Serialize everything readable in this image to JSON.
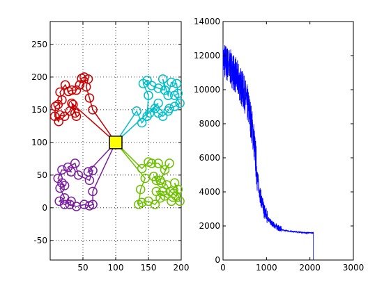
{
  "chart_data": [
    {
      "type": "scatter",
      "title": "",
      "xlabel": "",
      "ylabel": "",
      "xlim": [
        0,
        200
      ],
      "ylim": [
        -80,
        285
      ],
      "xticks": [
        50,
        100,
        150,
        200
      ],
      "yticks": [
        -50,
        0,
        50,
        100,
        150,
        200,
        250
      ],
      "grid": true,
      "depot": {
        "x": 100,
        "y": 100,
        "color": "#ffff00"
      },
      "series": [
        {
          "color": "#cc0000",
          "points": [
            [
              65,
              150
            ],
            [
              60,
              168
            ],
            [
              55,
              185
            ],
            [
              58,
              197
            ],
            [
              52,
              200
            ],
            [
              48,
              198
            ],
            [
              45,
              188
            ],
            [
              40,
              180
            ],
            [
              33,
              180
            ],
            [
              28,
              178
            ],
            [
              23,
              188
            ],
            [
              15,
              177
            ],
            [
              18,
              165
            ],
            [
              12,
              158
            ],
            [
              8,
              155
            ],
            [
              7,
              140
            ],
            [
              13,
              132
            ],
            [
              15,
              142
            ],
            [
              22,
              140
            ],
            [
              30,
              148
            ],
            [
              35,
              158
            ],
            [
              40,
              140
            ],
            [
              38,
              145
            ],
            [
              33,
              160
            ]
          ]
        },
        {
          "color": "#00bfc8",
          "points": [
            [
              132,
              148
            ],
            [
              140,
              130
            ],
            [
              148,
              140
            ],
            [
              150,
              172
            ],
            [
              142,
              190
            ],
            [
              148,
              195
            ],
            [
              155,
              187
            ],
            [
              165,
              183
            ],
            [
              175,
              180
            ],
            [
              172,
              197
            ],
            [
              180,
              172
            ],
            [
              185,
              192
            ],
            [
              193,
              190
            ],
            [
              195,
              175
            ],
            [
              190,
              172
            ],
            [
              198,
              160
            ],
            [
              190,
              155
            ],
            [
              182,
              152
            ],
            [
              180,
              148
            ],
            [
              172,
              140
            ],
            [
              165,
              145
            ],
            [
              160,
              152
            ],
            [
              152,
              145
            ],
            [
              165,
              160
            ]
          ]
        },
        {
          "color": "#7a1fa0",
          "points": [
            [
              58,
              55
            ],
            [
              65,
              57
            ],
            [
              60,
              42
            ],
            [
              43,
              50
            ],
            [
              38,
              68
            ],
            [
              27,
              62
            ],
            [
              32,
              55
            ],
            [
              18,
              58
            ],
            [
              12,
              45
            ],
            [
              18,
              38
            ],
            [
              22,
              34
            ],
            [
              15,
              30
            ],
            [
              22,
              15
            ],
            [
              14,
              10
            ],
            [
              22,
              5
            ],
            [
              32,
              10
            ],
            [
              30,
              5
            ],
            [
              40,
              2
            ],
            [
              52,
              5
            ],
            [
              60,
              3
            ],
            [
              65,
              5
            ],
            [
              65,
              25
            ]
          ]
        },
        {
          "color": "#6ec000",
          "points": [
            [
              140,
              60
            ],
            [
              150,
              70
            ],
            [
              155,
              68
            ],
            [
              165,
              68
            ],
            [
              175,
              58
            ],
            [
              182,
              68
            ],
            [
              168,
              42
            ],
            [
              158,
              48
            ],
            [
              162,
              42
            ],
            [
              170,
              38
            ],
            [
              178,
              35
            ],
            [
              183,
              25
            ],
            [
              188,
              22
            ],
            [
              192,
              18
            ],
            [
              195,
              28
            ],
            [
              190,
              38
            ],
            [
              198,
              10
            ],
            [
              185,
              10
            ],
            [
              175,
              18
            ],
            [
              172,
              25
            ],
            [
              162,
              25
            ],
            [
              168,
              15
            ],
            [
              160,
              5
            ],
            [
              150,
              10
            ],
            [
              140,
              8
            ],
            [
              135,
              5
            ],
            [
              138,
              28
            ],
            [
              145,
              45
            ]
          ]
        }
      ]
    },
    {
      "type": "line",
      "title": "",
      "xlabel": "",
      "ylabel": "",
      "xlim": [
        0,
        3000
      ],
      "ylim": [
        0,
        14000
      ],
      "xticks": [
        0,
        1000,
        2000,
        3000
      ],
      "yticks": [
        0,
        2000,
        4000,
        6000,
        8000,
        10000,
        12000,
        14000
      ],
      "grid": false,
      "color": "#0000ff",
      "x_end": 2080,
      "trend": [
        [
          0,
          11800
        ],
        [
          100,
          11500
        ],
        [
          200,
          11200
        ],
        [
          300,
          10800
        ],
        [
          400,
          10300
        ],
        [
          500,
          9700
        ],
        [
          600,
          8800
        ],
        [
          700,
          7300
        ],
        [
          750,
          6000
        ],
        [
          800,
          4700
        ],
        [
          850,
          3900
        ],
        [
          900,
          3300
        ],
        [
          950,
          2900
        ],
        [
          1000,
          2600
        ],
        [
          1100,
          2200
        ],
        [
          1200,
          2000
        ],
        [
          1300,
          1850
        ],
        [
          1400,
          1750
        ],
        [
          1500,
          1700
        ],
        [
          1700,
          1650
        ],
        [
          1900,
          1600
        ],
        [
          2080,
          1600
        ]
      ],
      "end_value": 0
    }
  ]
}
